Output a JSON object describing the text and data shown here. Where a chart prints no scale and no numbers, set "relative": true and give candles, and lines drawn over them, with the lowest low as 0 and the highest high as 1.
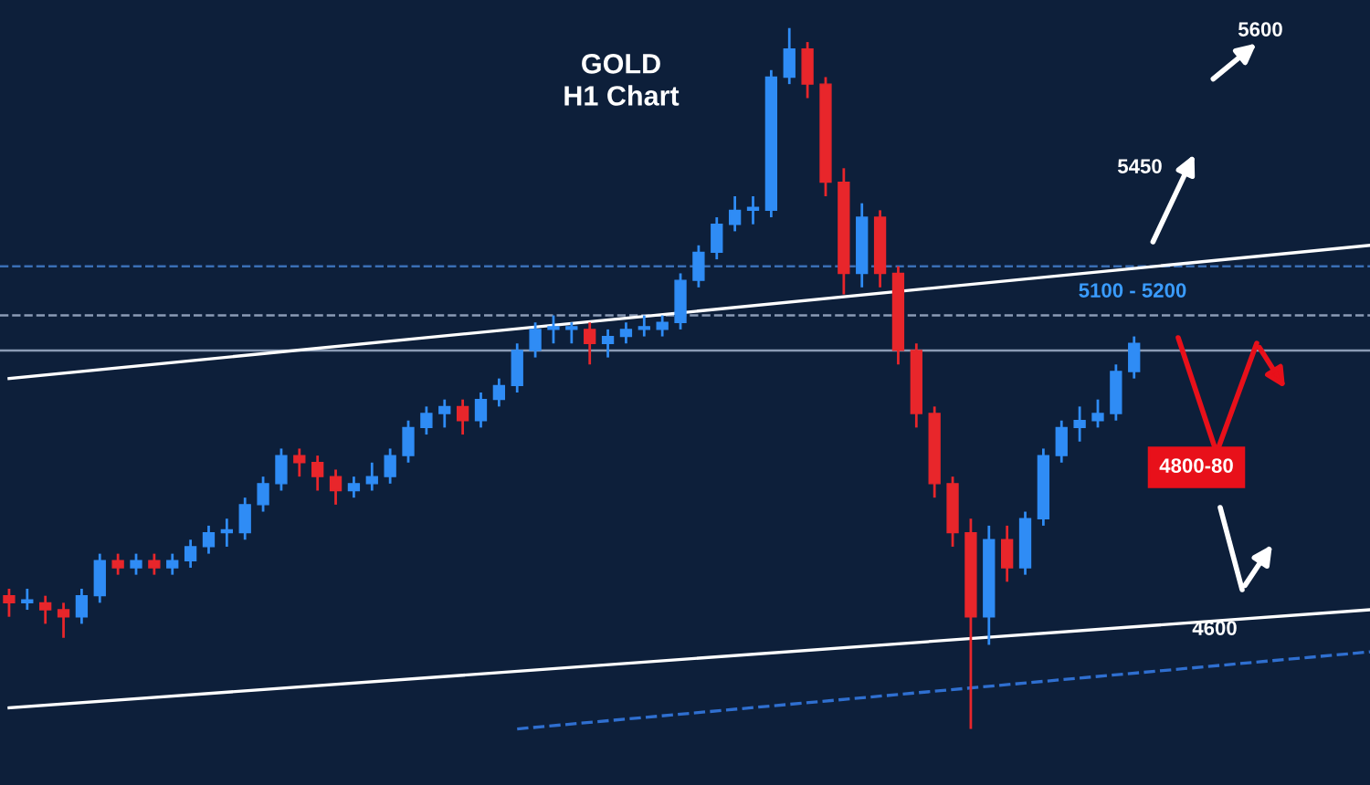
{
  "chart_data": {
    "type": "candlestick",
    "title": "GOLD\nH1 Chart",
    "relative": true,
    "categories": [
      null,
      null,
      null,
      null,
      null,
      null,
      null,
      null,
      null,
      null,
      null,
      null,
      null,
      null,
      null,
      null,
      null,
      null,
      null,
      null,
      null,
      null,
      null,
      null,
      null,
      null,
      null,
      null,
      null,
      null,
      null,
      null,
      null,
      null,
      null,
      null,
      null,
      null,
      null,
      null,
      null,
      null,
      null,
      null,
      null,
      null,
      null,
      null,
      null,
      null,
      null,
      null,
      null,
      null,
      null,
      null,
      null,
      null,
      null,
      null,
      null,
      null,
      null,
      null,
      null,
      null,
      null,
      null,
      null,
      null,
      null,
      null,
      null,
      null,
      null,
      null
    ],
    "ohlc": [
      [
        0.19,
        0.2,
        0.16,
        0.18
      ],
      [
        0.18,
        0.2,
        0.17,
        0.18
      ],
      [
        0.18,
        0.19,
        0.15,
        0.17
      ],
      [
        0.17,
        0.18,
        0.13,
        0.16
      ],
      [
        0.16,
        0.2,
        0.15,
        0.19
      ],
      [
        0.19,
        0.25,
        0.18,
        0.24
      ],
      [
        0.24,
        0.25,
        0.22,
        0.23
      ],
      [
        0.23,
        0.25,
        0.22,
        0.24
      ],
      [
        0.24,
        0.25,
        0.22,
        0.23
      ],
      [
        0.23,
        0.25,
        0.22,
        0.24
      ],
      [
        0.24,
        0.27,
        0.23,
        0.26
      ],
      [
        0.26,
        0.29,
        0.25,
        0.28
      ],
      [
        0.28,
        0.3,
        0.26,
        0.28
      ],
      [
        0.28,
        0.33,
        0.27,
        0.32
      ],
      [
        0.32,
        0.36,
        0.31,
        0.35
      ],
      [
        0.35,
        0.4,
        0.34,
        0.39
      ],
      [
        0.39,
        0.4,
        0.36,
        0.38
      ],
      [
        0.38,
        0.39,
        0.34,
        0.36
      ],
      [
        0.36,
        0.37,
        0.32,
        0.34
      ],
      [
        0.34,
        0.36,
        0.33,
        0.35
      ],
      [
        0.35,
        0.38,
        0.34,
        0.36
      ],
      [
        0.36,
        0.4,
        0.35,
        0.39
      ],
      [
        0.39,
        0.44,
        0.38,
        0.43
      ],
      [
        0.43,
        0.46,
        0.42,
        0.45
      ],
      [
        0.45,
        0.47,
        0.43,
        0.46
      ],
      [
        0.46,
        0.47,
        0.42,
        0.44
      ],
      [
        0.44,
        0.48,
        0.43,
        0.47
      ],
      [
        0.47,
        0.5,
        0.46,
        0.49
      ],
      [
        0.49,
        0.55,
        0.48,
        0.54
      ],
      [
        0.54,
        0.58,
        0.53,
        0.57
      ],
      [
        0.57,
        0.59,
        0.55,
        0.57
      ],
      [
        0.57,
        0.58,
        0.55,
        0.57
      ],
      [
        0.57,
        0.58,
        0.52,
        0.55
      ],
      [
        0.55,
        0.57,
        0.53,
        0.56
      ],
      [
        0.56,
        0.58,
        0.55,
        0.57
      ],
      [
        0.57,
        0.59,
        0.56,
        0.57
      ],
      [
        0.57,
        0.59,
        0.56,
        0.58
      ],
      [
        0.58,
        0.65,
        0.57,
        0.64
      ],
      [
        0.64,
        0.69,
        0.63,
        0.68
      ],
      [
        0.68,
        0.73,
        0.67,
        0.72
      ],
      [
        0.72,
        0.76,
        0.71,
        0.74
      ],
      [
        0.74,
        0.76,
        0.72,
        0.74
      ],
      [
        0.74,
        0.94,
        0.73,
        0.93
      ],
      [
        0.93,
        1,
        0.92,
        0.97
      ],
      [
        0.97,
        0.98,
        0.9,
        0.92
      ],
      [
        0.92,
        0.93,
        0.76,
        0.78
      ],
      [
        0.78,
        0.8,
        0.62,
        0.65
      ],
      [
        0.65,
        0.75,
        0.63,
        0.73
      ],
      [
        0.73,
        0.74,
        0.63,
        0.65
      ],
      [
        0.65,
        0.66,
        0.52,
        0.54
      ],
      [
        0.54,
        0.55,
        0.43,
        0.45
      ],
      [
        0.45,
        0.46,
        0.33,
        0.35
      ],
      [
        0.35,
        0.36,
        0.26,
        0.28
      ],
      [
        0.28,
        0.3,
        0,
        0.16
      ],
      [
        0.16,
        0.29,
        0.12,
        0.27
      ],
      [
        0.27,
        0.29,
        0.21,
        0.23
      ],
      [
        0.23,
        0.31,
        0.22,
        0.3
      ],
      [
        0.3,
        0.4,
        0.29,
        0.39
      ],
      [
        0.39,
        0.44,
        0.38,
        0.43
      ],
      [
        0.43,
        0.46,
        0.41,
        0.44
      ],
      [
        0.44,
        0.47,
        0.43,
        0.45
      ],
      [
        0.45,
        0.52,
        0.44,
        0.51
      ],
      [
        0.51,
        0.56,
        0.5,
        0.55
      ],
      null,
      null,
      null,
      null,
      null,
      null,
      null,
      null,
      null,
      null,
      null,
      null,
      null
    ],
    "series": [
      {
        "type": "line",
        "color": "#ffffff",
        "values": [
          0.5,
          null,
          null,
          null,
          null,
          null,
          null,
          null,
          null,
          null,
          null,
          null,
          null,
          null,
          null,
          null,
          null,
          null,
          null,
          null,
          null,
          null,
          null,
          null,
          null,
          null,
          null,
          null,
          null,
          null,
          null,
          null,
          null,
          null,
          null,
          null,
          null,
          null,
          null,
          null,
          null,
          null,
          null,
          null,
          null,
          null,
          null,
          null,
          null,
          null,
          null,
          null,
          null,
          null,
          null,
          null,
          null,
          null,
          null,
          null,
          null,
          null,
          null,
          null,
          null,
          null,
          null,
          null,
          null,
          null,
          null,
          null,
          null,
          null,
          null,
          0.69
        ]
      },
      {
        "type": "line",
        "color": "#ffffff",
        "values": [
          0.03,
          null,
          null,
          null,
          null,
          null,
          null,
          null,
          null,
          null,
          null,
          null,
          null,
          null,
          null,
          null,
          null,
          null,
          null,
          null,
          null,
          null,
          null,
          null,
          null,
          null,
          null,
          null,
          null,
          null,
          null,
          null,
          null,
          null,
          null,
          null,
          null,
          null,
          null,
          null,
          null,
          null,
          null,
          null,
          null,
          null,
          null,
          null,
          null,
          null,
          null,
          null,
          null,
          null,
          null,
          null,
          null,
          null,
          null,
          null,
          null,
          null,
          null,
          null,
          null,
          null,
          null,
          null,
          null,
          null,
          null,
          null,
          null,
          null,
          null,
          0.17
        ]
      },
      {
        "type": "line",
        "color": "#2f6fd0",
        "line_style": "dashed",
        "values": [
          null,
          null,
          null,
          null,
          null,
          null,
          null,
          null,
          null,
          null,
          null,
          null,
          null,
          null,
          null,
          null,
          null,
          null,
          null,
          null,
          null,
          null,
          null,
          null,
          null,
          null,
          null,
          null,
          0,
          null,
          null,
          null,
          null,
          null,
          null,
          null,
          null,
          null,
          null,
          null,
          null,
          null,
          null,
          null,
          null,
          null,
          null,
          null,
          null,
          null,
          null,
          null,
          null,
          null,
          null,
          null,
          null,
          null,
          null,
          null,
          null,
          null,
          null,
          null,
          null,
          null,
          null,
          null,
          null,
          null,
          null,
          null,
          null,
          null,
          null,
          0.11
        ]
      }
    ],
    "ref_lines": [
      {
        "axis": "y",
        "value": 0.66,
        "color": "#3a6fb5",
        "line_style": "dashed"
      },
      {
        "axis": "y",
        "value": 0.59,
        "color": "#8a9bb5",
        "line_style": "dashed"
      },
      {
        "axis": "y",
        "value": 0.54,
        "color": "#8a9bb5",
        "line_style": "solid"
      }
    ],
    "annotations": [
      "5600",
      "5450",
      "5100 - 5200",
      "4800-80",
      "4600"
    ]
  }
}
